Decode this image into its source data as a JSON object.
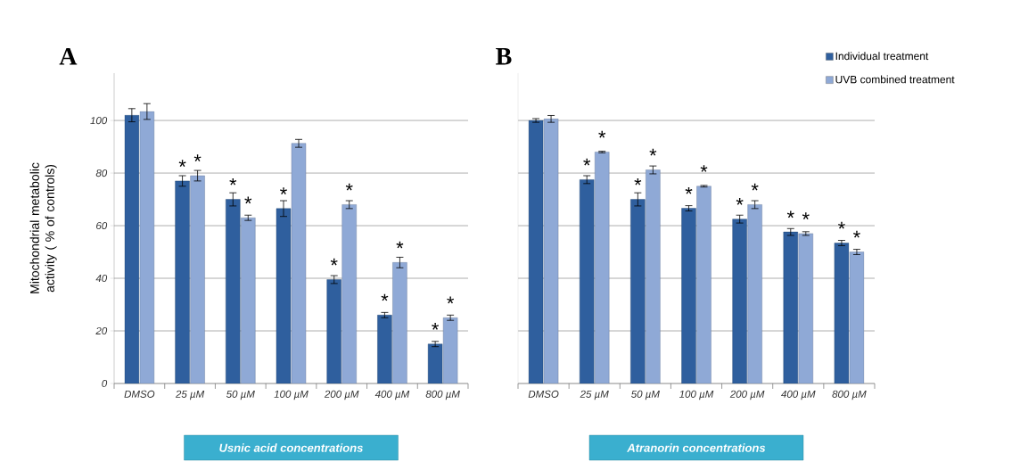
{
  "chart_data": [
    {
      "type": "bar",
      "title": "A",
      "xlabel": "Usnic acid concentrations",
      "ylabel": "Mitochondrial metabolic activity ( % of controls)",
      "categories": [
        "DMSO",
        "25 µM",
        "50 µM",
        "100 µM",
        "200 µM",
        "400 µM",
        "800 µM"
      ],
      "series": [
        {
          "color": "#2f5f9e",
          "values": [
            102,
            77,
            70,
            66.5,
            39.5,
            26,
            15
          ],
          "errors": [
            2.5,
            2,
            2.5,
            3,
            1.5,
            1,
            1
          ],
          "value_labels": [
            null,
            "*",
            "*",
            "*",
            "*",
            "*",
            "*"
          ]
        },
        {
          "color": "#8fa9d6",
          "values": [
            103.4,
            79,
            63,
            91.3,
            68,
            46,
            25
          ],
          "errors": [
            3,
            2,
            1,
            1.5,
            1.5,
            2,
            1
          ],
          "value_labels": [
            null,
            "*",
            "*",
            null,
            "*",
            "*",
            "*"
          ]
        }
      ],
      "ylim": [
        0,
        118
      ],
      "yticks": [
        0,
        20,
        40,
        60,
        80,
        100
      ],
      "grid": "y"
    },
    {
      "type": "bar",
      "title": "B",
      "xlabel": "Atranorin concentrations",
      "categories": [
        "DMSO",
        "25 µM",
        "50 µM",
        "100 µM",
        "200 µM",
        "400 µM",
        "800 µM"
      ],
      "series": [
        {
          "name": "Individual treatment",
          "color": "#2f5f9e",
          "values": [
            100,
            77.5,
            70,
            66.6,
            62.5,
            57.6,
            53.4
          ],
          "errors": [
            0.7,
            1.5,
            2.5,
            1,
            1.5,
            1.3,
            1
          ],
          "value_labels": [
            null,
            "*",
            "*",
            "*",
            "*",
            "*",
            "*"
          ]
        },
        {
          "name": "UVB combined treatment",
          "color": "#8fa9d6",
          "values": [
            100.6,
            88,
            81.2,
            75,
            68,
            57,
            50
          ],
          "errors": [
            1.3,
            0.3,
            1.5,
            0.3,
            1.5,
            0.7,
            1
          ],
          "value_labels": [
            null,
            "*",
            "*",
            "*",
            "*",
            "*",
            "*"
          ]
        }
      ],
      "ylim": [
        0,
        118
      ],
      "yticks": [
        0,
        20,
        40,
        60,
        80,
        100
      ],
      "grid": "y",
      "tick_labels": "x",
      "legend": "top right"
    }
  ]
}
